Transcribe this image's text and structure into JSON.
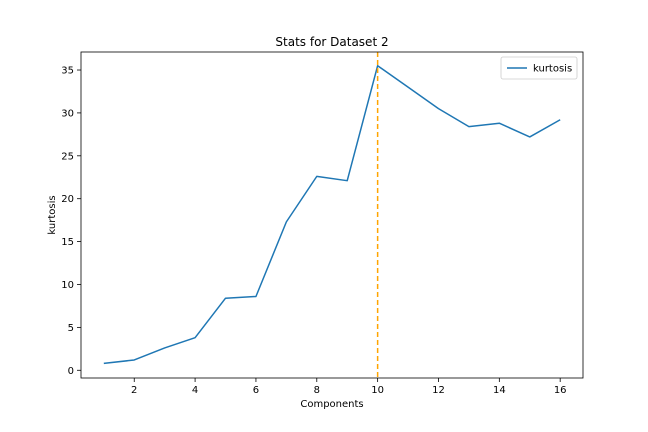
{
  "chart_data": {
    "type": "line",
    "title": "Stats for Dataset 2",
    "xlabel": "Components",
    "ylabel": "kurtosis",
    "xlim": [
      0.25,
      16.75
    ],
    "ylim": [
      -0.9,
      37.1
    ],
    "xticks": [
      2,
      4,
      6,
      8,
      10,
      12,
      14,
      16
    ],
    "yticks": [
      0,
      5,
      10,
      15,
      20,
      25,
      30,
      35
    ],
    "grid": false,
    "legend": "top-right",
    "series": [
      {
        "name": "kurtosis",
        "color": "#1f77b4",
        "x": [
          1,
          2,
          3,
          4,
          5,
          6,
          7,
          8,
          9,
          10,
          11,
          12,
          13,
          14,
          15,
          16
        ],
        "y": [
          0.8,
          1.2,
          2.6,
          3.8,
          8.4,
          8.6,
          17.3,
          22.6,
          22.1,
          35.5,
          33.0,
          30.5,
          28.4,
          28.8,
          27.2,
          29.2
        ]
      }
    ],
    "annotations": [
      {
        "type": "vline",
        "x": 10,
        "color": "#ffa500",
        "style": "dashed"
      }
    ]
  }
}
